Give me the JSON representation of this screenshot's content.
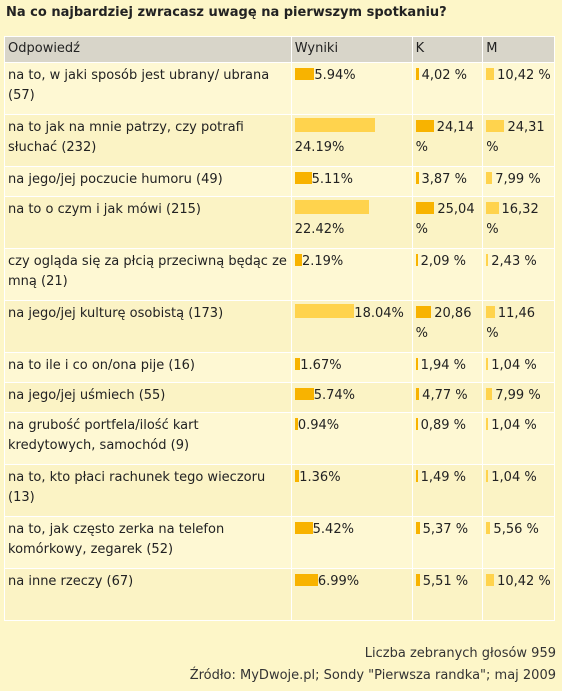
{
  "title": "Na co najbardziej zwracasz uwagę na pierwszym spotkaniu?",
  "headers": {
    "answer": "Odpowiedź",
    "results": "Wyniki",
    "k": "K",
    "m": "M"
  },
  "rows": [
    {
      "answer": "na to, w jaki sposób jest ubrany/ ubrana (57)",
      "result": "5.94%",
      "result_value": 5.94,
      "k": "4,02 %",
      "k_value": 4.02,
      "m": "10,42 %",
      "m_value": 10.42,
      "h": 52
    },
    {
      "answer": "na to jak na mnie patrzy, czy potrafi słuchać (232)",
      "result": "24.19%",
      "result_value": 24.19,
      "k": "24,14 %",
      "k_value": 24.14,
      "m": "24,31 %",
      "m_value": 24.31,
      "h": 52
    },
    {
      "answer": "na jego/jej poczucie humoru (49)",
      "result": "5.11%",
      "result_value": 5.11,
      "k": "3,87 %",
      "k_value": 3.87,
      "m": "7,99 %",
      "m_value": 7.99,
      "h": 30
    },
    {
      "answer": "na to o czym i jak mówi (215)",
      "result": "22.42%",
      "result_value": 22.42,
      "k": "25,04 %",
      "k_value": 25.04,
      "m": "16,32 %",
      "m_value": 16.32,
      "h": 52
    },
    {
      "answer": "czy ogląda się za płcią przeciwną będąc ze mną (21)",
      "result": "2.19%",
      "result_value": 2.19,
      "k": "2,09 %",
      "k_value": 2.09,
      "m": "2,43 %",
      "m_value": 2.43,
      "h": 52
    },
    {
      "answer": "na jego/jej kulturę osobistą (173)",
      "result": "18.04%",
      "result_value": 18.04,
      "k": "20,86 %",
      "k_value": 20.86,
      "m": "11,46 %",
      "m_value": 11.46,
      "h": 52
    },
    {
      "answer": "na to ile i co on/ona pije (16)",
      "result": "1.67%",
      "result_value": 1.67,
      "k": "1,94 %",
      "k_value": 1.94,
      "m": "1,04 %",
      "m_value": 1.04,
      "h": 30
    },
    {
      "answer": "na jego/jej uśmiech (55)",
      "result": "5.74%",
      "result_value": 5.74,
      "k": "4,77 %",
      "k_value": 4.77,
      "m": "7,99 %",
      "m_value": 7.99,
      "h": 30
    },
    {
      "answer": "na grubość portfela/ilość kart kredytowych, samochód (9)",
      "result": "0.94%",
      "result_value": 0.94,
      "k": "0,89 %",
      "k_value": 0.89,
      "m": "1,04 %",
      "m_value": 1.04,
      "h": 52
    },
    {
      "answer": "na to, kto płaci rachunek tego wieczoru (13)",
      "result": "1.36%",
      "result_value": 1.36,
      "k": "1,49 %",
      "k_value": 1.49,
      "m": "1,04 %",
      "m_value": 1.04,
      "h": 52
    },
    {
      "answer": "na to, jak często zerka na telefon komórkowy, zegarek (52)",
      "result": "5.42%",
      "result_value": 5.42,
      "k": "5,37 %",
      "k_value": 5.37,
      "m": "5,56 %",
      "m_value": 5.56,
      "h": 52
    },
    {
      "answer": "na inne rzeczy (67)",
      "result": "6.99%",
      "result_value": 6.99,
      "k": "5,51 %",
      "k_value": 5.51,
      "m": "10,42 %",
      "m_value": 10.42,
      "h": 52
    }
  ],
  "footer": {
    "votes": "Liczba zebranych głosów 959",
    "source": "Źródło: MyDwoje.pl; Sondy \"Pierwsza randka\"; maj 2009"
  },
  "colors": {
    "bar_dark": "#f8b300",
    "bar_light": "#ffd34d",
    "background": "#fdf6c8",
    "header": "#d8d5c9"
  }
}
